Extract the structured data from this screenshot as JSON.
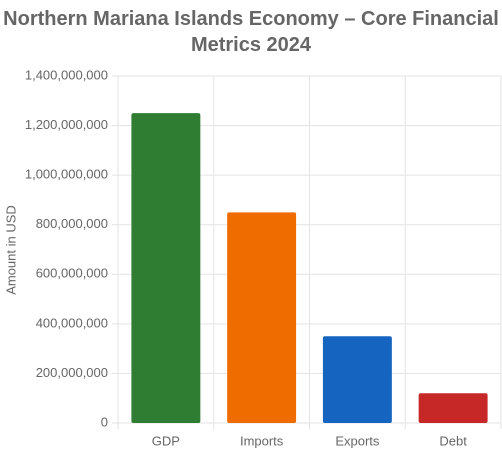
{
  "chart_data": {
    "type": "bar",
    "title": "Northern Mariana Islands Economy – Core Financial Metrics 2024",
    "y_label": "Amount in USD",
    "categories": [
      "GDP",
      "Imports",
      "Exports",
      "Debt"
    ],
    "values": [
      1250000000,
      850000000,
      350000000,
      120000000
    ],
    "colors": [
      "#2e7d32",
      "#ef6c00",
      "#1565c0",
      "#c62828"
    ],
    "ylim": [
      0,
      1400000000
    ],
    "yticks": [
      0,
      {
        "value": 200000000,
        "label": "200,000,000"
      },
      {
        "value": 400000000,
        "label": "400,000,000"
      },
      {
        "value": 600000000,
        "label": "600,000,000"
      },
      {
        "value": 800000000,
        "label": "800,000,000"
      },
      {
        "value": 1000000000,
        "label": "1,000,000,000"
      },
      {
        "value": 1200000000,
        "label": "1,200,000,000"
      },
      {
        "value": 1400000000,
        "label": "1,400,000,000"
      }
    ],
    "grid": true
  }
}
